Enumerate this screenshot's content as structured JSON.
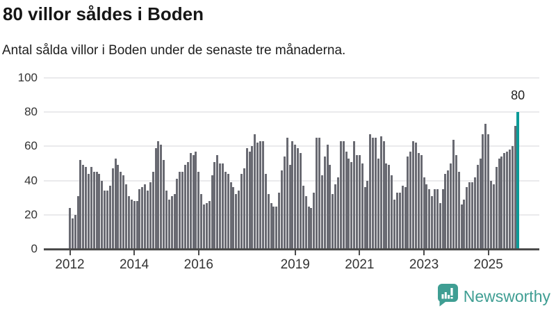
{
  "header": {
    "title": "80 villor såldes i Boden",
    "subtitle": "Antal sålda villor i Boden under de senaste tre månaderna."
  },
  "annotation": {
    "label": "80"
  },
  "logo": {
    "text": "Newsworthy",
    "icon": "speech-bubble-bar-chart"
  },
  "colors": {
    "bar": "#696a72",
    "highlight": "#0c9b98",
    "gridline": "#eaeaec",
    "axis": "#4b4b4b",
    "title_text": "#161616",
    "axis_text": "#333333",
    "logo_teal": "#3f9e93"
  },
  "chart_data": {
    "type": "bar",
    "title": "80 villor såldes i Boden",
    "subtitle": "Antal sålda villor i Boden under de senaste tre månaderna.",
    "x_start": "2012-01",
    "frequency": "monthly",
    "xlabel": "",
    "ylabel": "",
    "ylim": [
      0,
      100
    ],
    "yticks": [
      0,
      20,
      40,
      60,
      80,
      100
    ],
    "xticks": [
      "2012",
      "2014",
      "2016",
      "2019",
      "2021",
      "2023",
      "2025"
    ],
    "grid": true,
    "legend": "none",
    "highlight_last_bar": true,
    "last_bar_label": "80",
    "values": [
      24,
      18,
      20,
      31,
      52,
      49,
      48,
      44,
      48,
      45,
      45,
      44,
      40,
      34,
      34,
      37,
      47,
      53,
      49,
      45,
      43,
      38,
      31,
      29,
      28,
      28,
      35,
      36,
      38,
      34,
      39,
      45,
      59,
      63,
      61,
      52,
      34,
      29,
      31,
      32,
      41,
      45,
      45,
      49,
      51,
      56,
      55,
      57,
      45,
      32,
      26,
      27,
      28,
      43,
      51,
      55,
      50,
      50,
      45,
      44,
      39,
      36,
      32,
      34,
      44,
      47,
      59,
      57,
      60,
      67,
      62,
      63,
      63,
      44,
      32,
      27,
      25,
      25,
      33,
      46,
      54,
      65,
      49,
      63,
      61,
      59,
      56,
      37,
      31,
      25,
      24,
      33,
      65,
      65,
      43,
      54,
      61,
      49,
      32,
      38,
      42,
      63,
      63,
      57,
      53,
      51,
      63,
      55,
      55,
      50,
      36,
      40,
      67,
      65,
      65,
      53,
      66,
      63,
      50,
      49,
      43,
      29,
      33,
      33,
      37,
      36,
      54,
      57,
      63,
      62,
      56,
      55,
      42,
      38,
      35,
      31,
      35,
      35,
      27,
      35,
      44,
      46,
      50,
      64,
      55,
      45,
      26,
      29,
      36,
      39,
      39,
      42,
      49,
      53,
      67,
      73,
      67,
      40,
      38,
      48,
      53,
      54,
      56,
      57,
      58,
      60,
      72,
      80
    ]
  }
}
